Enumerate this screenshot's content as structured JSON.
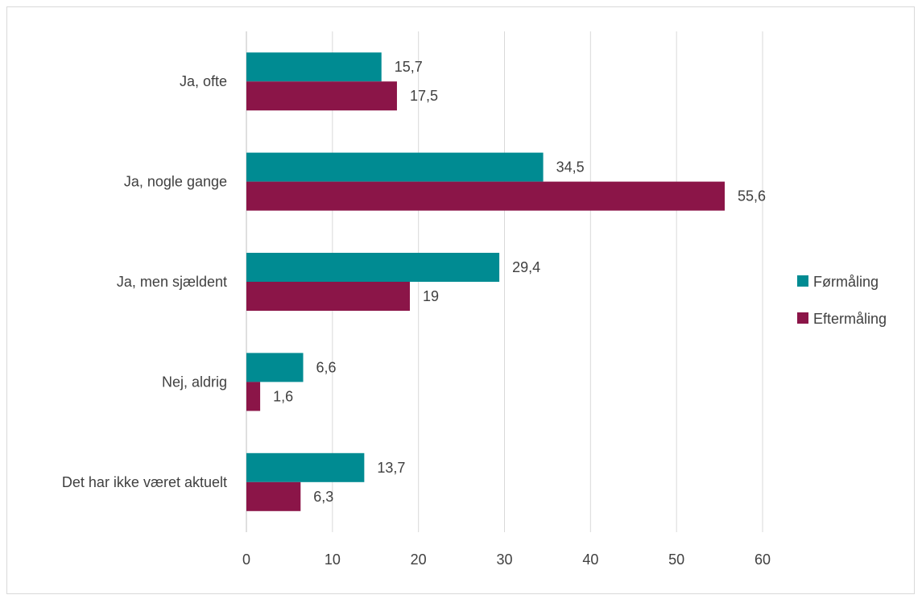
{
  "chart_data": {
    "type": "bar",
    "orientation": "horizontal",
    "categories": [
      "Ja, ofte",
      "Ja, nogle gange",
      "Ja, men sjældent",
      "Nej, aldrig",
      "Det har ikke været aktuelt"
    ],
    "series": [
      {
        "name": "Førmåling",
        "values": [
          15.7,
          34.5,
          29.4,
          6.6,
          13.7
        ],
        "labels": [
          "15,7",
          "34,5",
          "29,4",
          "6,6",
          "13,7"
        ],
        "color": "#008B92"
      },
      {
        "name": "Eftermåling",
        "values": [
          17.5,
          55.6,
          19,
          1.6,
          6.3
        ],
        "labels": [
          "17,5",
          "55,6",
          "19",
          "1,6",
          "6,3"
        ],
        "color": "#8B1548"
      }
    ],
    "x_ticks": [
      0,
      10,
      20,
      30,
      40,
      50,
      60
    ],
    "xlim": [
      0,
      60
    ],
    "grid": "vertical",
    "legend_position": "right",
    "title": "",
    "xlabel": "",
    "ylabel": ""
  }
}
